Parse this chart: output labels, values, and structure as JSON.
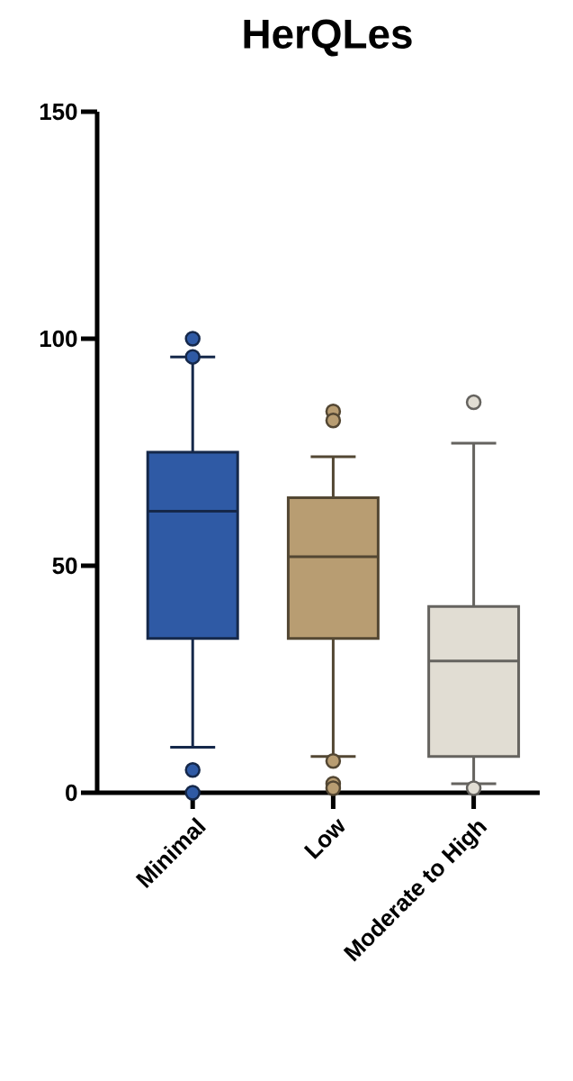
{
  "chart_data": {
    "type": "box",
    "title": "HerQLes",
    "categories": [
      "Minimal",
      "Low",
      "Moderate to High"
    ],
    "colors": [
      "#2f5aa5",
      "#b89d72",
      "#e1ddd3"
    ],
    "boxes": [
      {
        "low": 10,
        "q1": 34,
        "median": 62,
        "q3": 75,
        "high": 96,
        "outliers": [
          100,
          96,
          5,
          0
        ]
      },
      {
        "low": 8,
        "q1": 34,
        "median": 52,
        "q3": 65,
        "high": 74,
        "outliers": [
          84,
          82,
          7,
          2,
          1
        ]
      },
      {
        "low": 2,
        "q1": 8,
        "median": 29,
        "q3": 41,
        "high": 77,
        "outliers": [
          86,
          1
        ]
      }
    ],
    "ylim": [
      0,
      150
    ],
    "yticks": [
      0,
      50,
      100,
      150
    ]
  }
}
